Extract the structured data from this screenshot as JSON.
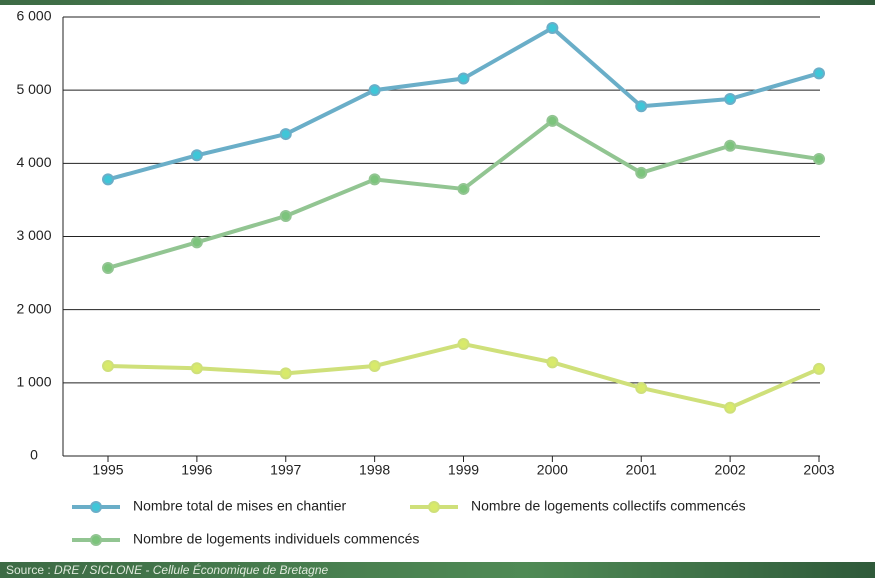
{
  "chart_data": {
    "type": "line",
    "categories": [
      "1995",
      "1996",
      "1997",
      "1998",
      "1999",
      "2000",
      "2001",
      "2002",
      "2003"
    ],
    "series": [
      {
        "name": "Nombre total de mises en chantier",
        "color": "#6aaec8",
        "marker": "#3fc6d8",
        "values": [
          3780,
          4110,
          4400,
          5000,
          5160,
          5850,
          4780,
          4880,
          5230
        ]
      },
      {
        "name": "Nombre de logements collectifs commencés",
        "color": "#cfe07a",
        "marker": "#d8ea6a",
        "values": [
          1230,
          1200,
          1130,
          1230,
          1530,
          1280,
          930,
          660,
          1190
        ]
      },
      {
        "name": "Nombre de logements individuels commencés",
        "color": "#92c592",
        "marker": "#7cc47c",
        "values": [
          2570,
          2920,
          3280,
          3780,
          3650,
          4580,
          3870,
          4240,
          4060
        ]
      }
    ],
    "ylim": [
      0,
      6000
    ],
    "yticks": [
      0,
      {
        "value": 1000,
        "label": "1 000"
      },
      {
        "value": 2000,
        "label": "2 000"
      },
      {
        "value": 3000,
        "label": "3 000"
      },
      {
        "value": 4000,
        "label": "4 000"
      },
      {
        "value": 5000,
        "label": "5 000"
      },
      {
        "value": 6000,
        "label": "6 000"
      }
    ],
    "grid": true,
    "source_prefix": "Source :",
    "source": "DRE / SICLONE - Cellule Économique de Bretagne"
  }
}
